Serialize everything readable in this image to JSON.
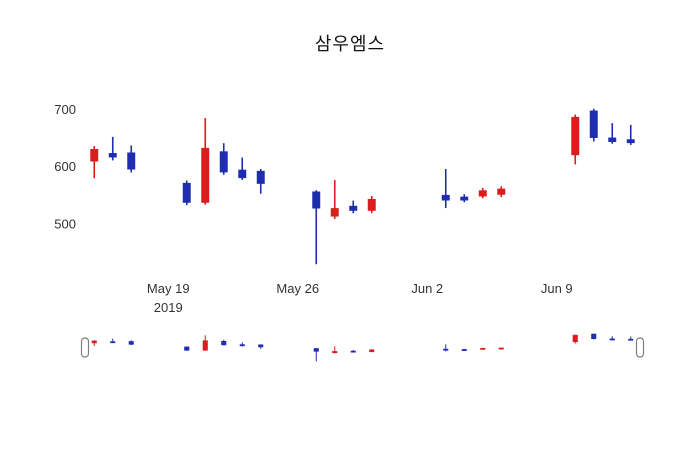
{
  "chart_data": {
    "type": "candlestick",
    "title": "삼우엠스",
    "xlim": [
      "2019-05-15T00:00:00",
      "2019-06-14T00:00:00"
    ],
    "ylim": [
      420,
      725
    ],
    "y_ticks": [
      500,
      600,
      700
    ],
    "x_ticks": [
      {
        "date": "2019-05-19",
        "label": "May 19",
        "sublabel": "2019"
      },
      {
        "date": "2019-05-26",
        "label": "May 26"
      },
      {
        "date": "2019-06-02",
        "label": "Jun 2"
      },
      {
        "date": "2019-06-09",
        "label": "Jun 9"
      }
    ],
    "colors": {
      "increasing": "#dc1d1d",
      "decreasing": "#1f2db0"
    },
    "grid": false,
    "legend": "none",
    "rangeslider": true,
    "candles": [
      {
        "date": "2019-05-15",
        "open": 610,
        "high": 636,
        "low": 580,
        "close": 630
      },
      {
        "date": "2019-05-16",
        "open": 623,
        "high": 652,
        "low": 611,
        "close": 617
      },
      {
        "date": "2019-05-17",
        "open": 624,
        "high": 637,
        "low": 590,
        "close": 596
      },
      {
        "date": "2019-05-20",
        "open": 571,
        "high": 576,
        "low": 533,
        "close": 538
      },
      {
        "date": "2019-05-21",
        "open": 538,
        "high": 685,
        "low": 534,
        "close": 632
      },
      {
        "date": "2019-05-22",
        "open": 626,
        "high": 641,
        "low": 586,
        "close": 591
      },
      {
        "date": "2019-05-23",
        "open": 594,
        "high": 616,
        "low": 577,
        "close": 581
      },
      {
        "date": "2019-05-24",
        "open": 592,
        "high": 596,
        "low": 553,
        "close": 571
      },
      {
        "date": "2019-05-27",
        "open": 556,
        "high": 559,
        "low": 430,
        "close": 528
      },
      {
        "date": "2019-05-28",
        "open": 514,
        "high": 577,
        "low": 509,
        "close": 527
      },
      {
        "date": "2019-05-29",
        "open": 531,
        "high": 541,
        "low": 519,
        "close": 524
      },
      {
        "date": "2019-05-30",
        "open": 524,
        "high": 549,
        "low": 519,
        "close": 543
      },
      {
        "date": "2019-06-03",
        "open": 550,
        "high": 596,
        "low": 528,
        "close": 542
      },
      {
        "date": "2019-06-04",
        "open": 547,
        "high": 552,
        "low": 538,
        "close": 542
      },
      {
        "date": "2019-06-05",
        "open": 549,
        "high": 563,
        "low": 545,
        "close": 558
      },
      {
        "date": "2019-06-06",
        "open": 552,
        "high": 566,
        "low": 547,
        "close": 561
      },
      {
        "date": "2019-06-10",
        "open": 621,
        "high": 691,
        "low": 604,
        "close": 686
      },
      {
        "date": "2019-06-11",
        "open": 697,
        "high": 701,
        "low": 644,
        "close": 651
      },
      {
        "date": "2019-06-12",
        "open": 650,
        "high": 676,
        "low": 640,
        "close": 644
      },
      {
        "date": "2019-06-13",
        "open": 647,
        "high": 673,
        "low": 638,
        "close": 642
      }
    ]
  }
}
